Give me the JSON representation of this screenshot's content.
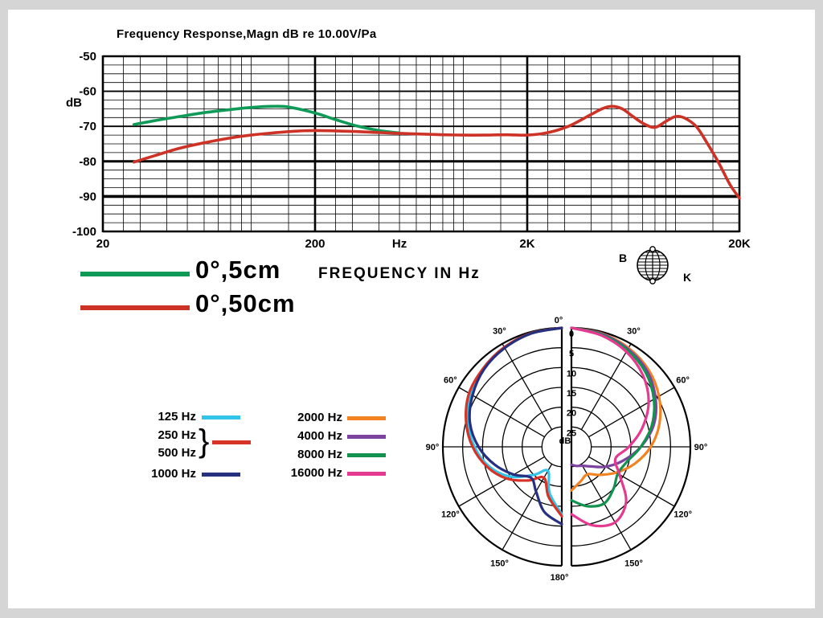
{
  "page": {
    "background": "#d5d5d5",
    "panel_background": "#ffffff"
  },
  "branding": {
    "b": "B",
    "k": "K"
  },
  "chart_data": [
    {
      "type": "line",
      "title": "Frequency Response,Magn dB re 10.00V/Pa",
      "xlabel": "FREQUENCY IN Hz",
      "ylabel": "dB",
      "xscale": "log",
      "xlim": [
        20,
        20000
      ],
      "ylim": [
        -100,
        -50
      ],
      "yticks": [
        -50,
        -60,
        -70,
        -80,
        -90,
        -100
      ],
      "xticks": [
        {
          "value": 20,
          "label": "20"
        },
        {
          "value": 200,
          "label": "200"
        },
        {
          "value": 500,
          "label": "Hz"
        },
        {
          "value": 2000,
          "label": "2K"
        },
        {
          "value": 20000,
          "label": "20K"
        }
      ],
      "grid": true,
      "legend_position": "below-left",
      "series": [
        {
          "name": "0°,5cm",
          "color": "#0f9b57",
          "points": [
            [
              28,
              -69.5
            ],
            [
              35,
              -68.4
            ],
            [
              45,
              -67.3
            ],
            [
              60,
              -66.1
            ],
            [
              80,
              -65.2
            ],
            [
              100,
              -64.6
            ],
            [
              125,
              -64.3
            ],
            [
              150,
              -64.5
            ],
            [
              200,
              -66.2
            ],
            [
              250,
              -68.1
            ],
            [
              315,
              -69.9
            ],
            [
              400,
              -71.2
            ],
            [
              500,
              -71.9
            ]
          ]
        },
        {
          "name": "0°,50cm",
          "color": "#cd3226",
          "points": [
            [
              28,
              -80.2
            ],
            [
              35,
              -78.4
            ],
            [
              45,
              -76.4
            ],
            [
              60,
              -74.7
            ],
            [
              80,
              -73.3
            ],
            [
              100,
              -72.5
            ],
            [
              125,
              -71.9
            ],
            [
              160,
              -71.4
            ],
            [
              200,
              -71.2
            ],
            [
              250,
              -71.3
            ],
            [
              315,
              -71.5
            ],
            [
              400,
              -71.8
            ],
            [
              500,
              -72.0
            ],
            [
              630,
              -72.2
            ],
            [
              800,
              -72.4
            ],
            [
              1000,
              -72.5
            ],
            [
              1250,
              -72.5
            ],
            [
              1600,
              -72.4
            ],
            [
              2000,
              -72.5
            ],
            [
              2500,
              -71.8
            ],
            [
              3150,
              -69.9
            ],
            [
              4000,
              -66.6
            ],
            [
              4500,
              -65.0
            ],
            [
              5000,
              -64.3
            ],
            [
              5600,
              -65.0
            ],
            [
              6300,
              -67.2
            ],
            [
              7100,
              -69.3
            ],
            [
              8000,
              -70.3
            ],
            [
              9000,
              -68.6
            ],
            [
              10000,
              -67.2
            ],
            [
              11000,
              -67.6
            ],
            [
              12500,
              -70.0
            ],
            [
              14000,
              -74.5
            ],
            [
              16000,
              -80.5
            ],
            [
              18000,
              -86.5
            ],
            [
              20000,
              -90.5
            ]
          ]
        }
      ]
    },
    {
      "type": "polar",
      "rings_db": [
        0,
        5,
        10,
        15,
        20,
        25
      ],
      "center_db": 30,
      "center_label": "dB",
      "group_brace": "}",
      "angle_labels": [
        "0°",
        "30°",
        "60°",
        "90°",
        "120°",
        "150°",
        "180°"
      ],
      "angles_deg": [
        0,
        15,
        30,
        45,
        60,
        75,
        90,
        105,
        120,
        135,
        150,
        165,
        180
      ],
      "series_left": [
        {
          "name": "125 Hz",
          "color": "#33c4ea",
          "att_db": [
            0,
            0.3,
            1,
            2,
            3.5,
            5.5,
            8,
            11,
            15,
            20,
            23,
            18,
            13
          ]
        },
        {
          "name": "250 Hz / 500 Hz",
          "color": "#d63326",
          "att_db": [
            0,
            0.3,
            1,
            2,
            3,
            5,
            7.5,
            10.5,
            14,
            18,
            21,
            17,
            12.5
          ]
        },
        {
          "name": "1000 Hz",
          "color": "#26307e",
          "att_db": [
            0,
            0.4,
            1.2,
            2.3,
            4,
            6,
            9,
            12.5,
            16,
            19,
            17,
            13,
            10.5
          ]
        }
      ],
      "series_right": [
        {
          "name": "2000 Hz",
          "color": "#f28222",
          "att_db": [
            0,
            0.4,
            1.2,
            2.5,
            4.5,
            7,
            10,
            13.5,
            17,
            20,
            22,
            21,
            19
          ]
        },
        {
          "name": "4000 Hz",
          "color": "#7d449e",
          "att_db": [
            0,
            0.5,
            1.5,
            3,
            5.5,
            8.5,
            12.5,
            16.5,
            20,
            23,
            24.5,
            25,
            25.5
          ]
        },
        {
          "name": "8000 Hz",
          "color": "#12914f",
          "att_db": [
            0,
            0.7,
            1.8,
            3.5,
            6,
            9,
            12.5,
            15.5,
            16.5,
            15,
            13.5,
            14.5,
            16.5
          ]
        },
        {
          "name": "16000 Hz",
          "color": "#e53a90",
          "att_db": [
            0,
            0.9,
            2.3,
            4.5,
            7.5,
            11.5,
            15.5,
            18.5,
            16,
            10.5,
            8,
            9.5,
            13
          ]
        }
      ],
      "legend_left": [
        {
          "label": "125 Hz",
          "color": "#33c4ea"
        },
        {
          "label": "250 Hz",
          "color": "#d63326",
          "grouped": true
        },
        {
          "label": "500 Hz",
          "color": "#d63326",
          "grouped": true
        },
        {
          "label": "1000 Hz",
          "color": "#26307e"
        }
      ],
      "legend_right": [
        {
          "label": "2000 Hz",
          "color": "#f28222"
        },
        {
          "label": "4000 Hz",
          "color": "#7d449e"
        },
        {
          "label": "8000 Hz",
          "color": "#12914f"
        },
        {
          "label": "16000 Hz",
          "color": "#e53a90"
        }
      ]
    }
  ]
}
